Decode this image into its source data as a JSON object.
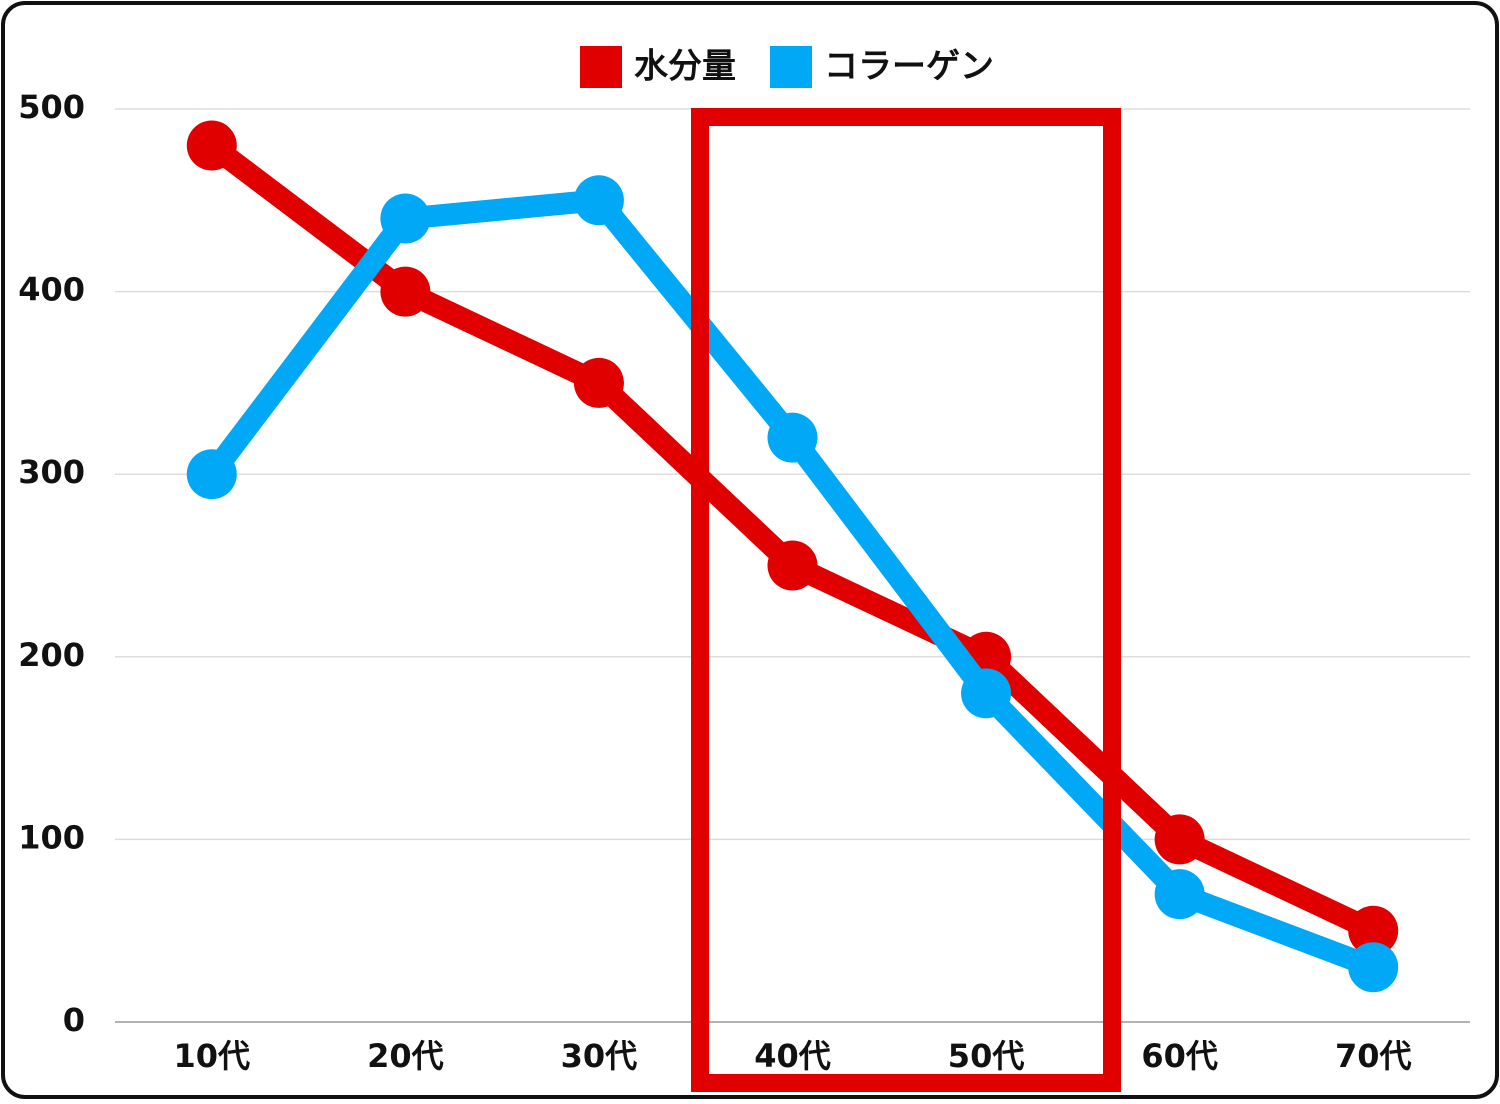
{
  "chart_data": {
    "type": "line",
    "categories": [
      "10代",
      "20代",
      "30代",
      "40代",
      "50代",
      "60代",
      "70代"
    ],
    "series": [
      {
        "name": "水分量",
        "color": "#e00000",
        "values": [
          480,
          400,
          350,
          250,
          200,
          100,
          50
        ]
      },
      {
        "name": "コラーゲン",
        "color": "#00a8f5",
        "values": [
          300,
          440,
          450,
          320,
          180,
          70,
          30
        ]
      }
    ],
    "ylim": [
      0,
      500
    ],
    "yticks": [
      0,
      100,
      200,
      300,
      400,
      500
    ],
    "grid": true,
    "legend": "top"
  }
}
